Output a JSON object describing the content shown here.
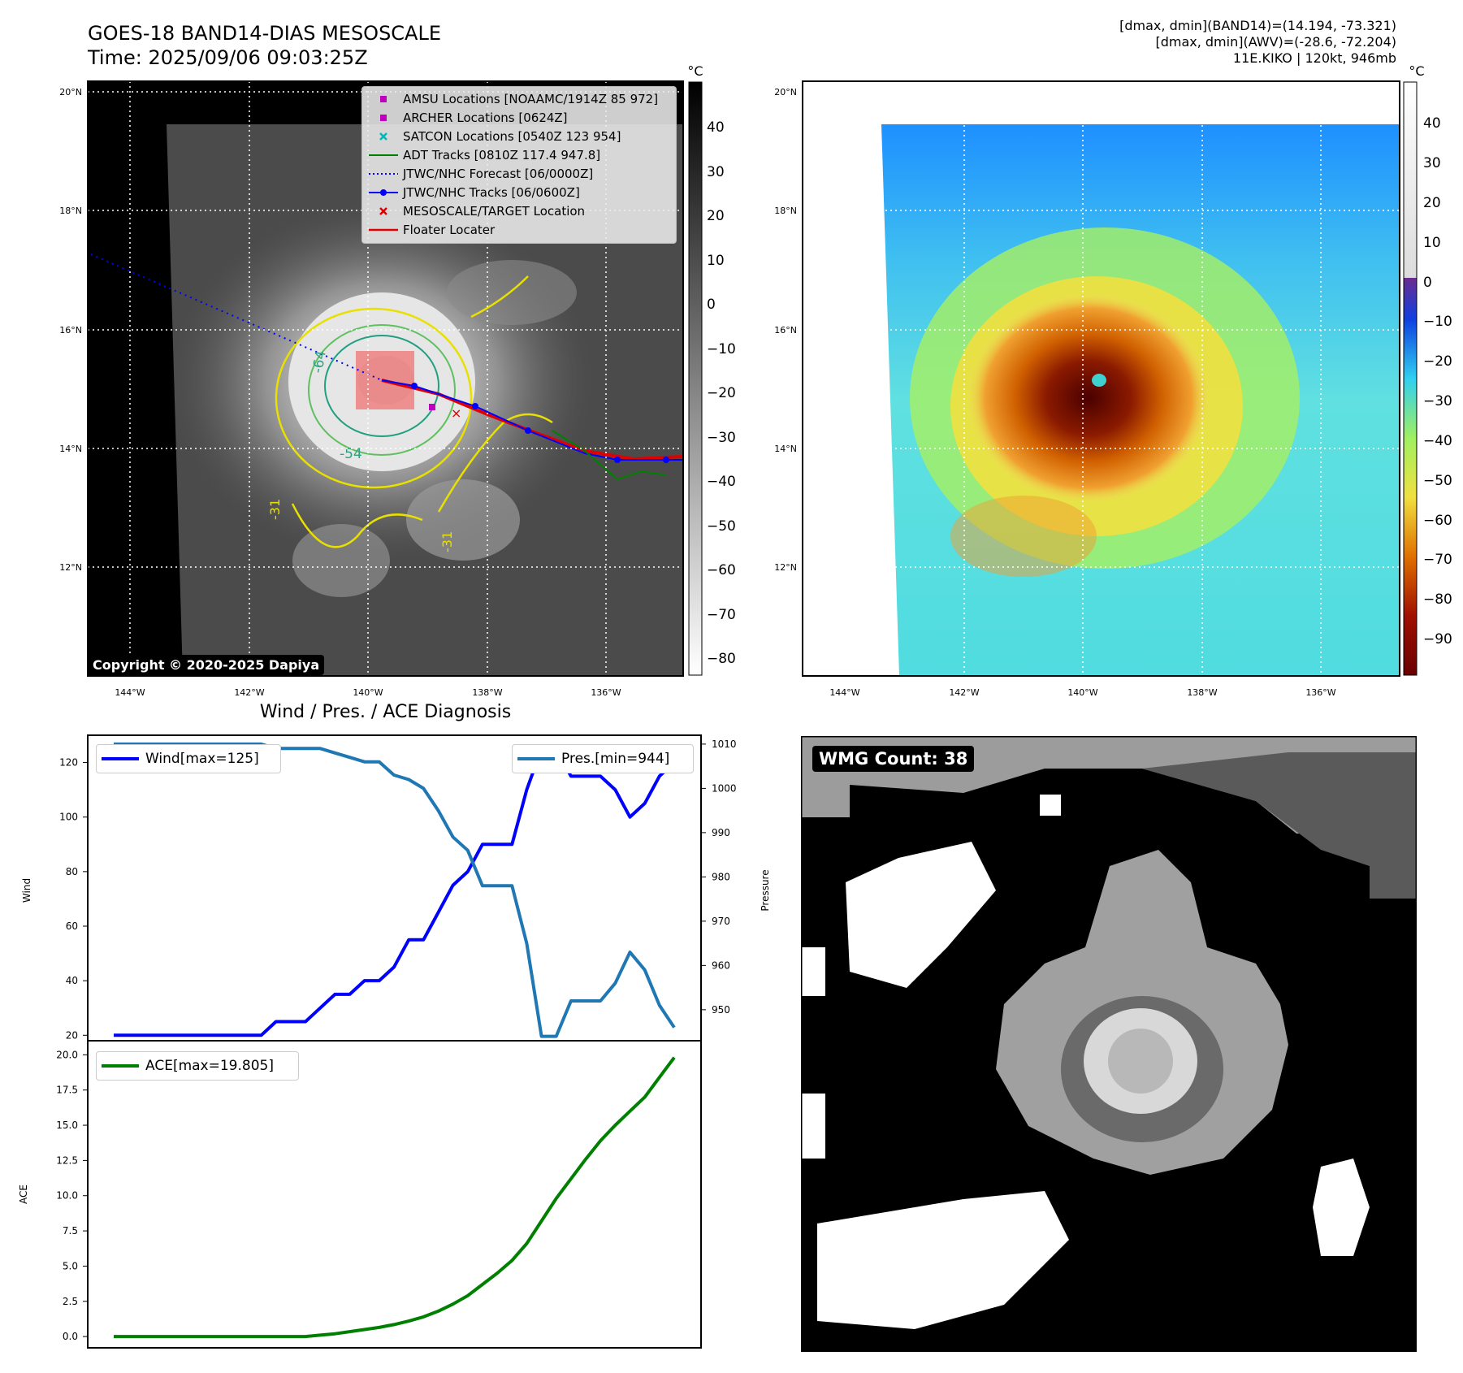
{
  "header": {
    "title": "GOES-18 BAND14-DIAS MESOSCALE",
    "time": "Time: 2025/09/06 09:03:25Z",
    "stats_band14": "[dmax, dmin](BAND14)=(14.194, -73.321)",
    "stats_awv": "[dmax, dmin](AWV)=(-28.6, -72.204)",
    "storm": "11E.KIKO | 120kt, 946mb"
  },
  "map": {
    "lat_labels": [
      "20°N",
      "18°N",
      "16°N",
      "14°N",
      "12°N"
    ],
    "lon_labels": [
      "144°W",
      "142°W",
      "140°W",
      "138°W",
      "136°W"
    ],
    "contour_labels": [
      "-64",
      "-54",
      "-31",
      "-31"
    ],
    "copyright": "Copyright © 2020-2025 Dapiya"
  },
  "legend": [
    {
      "label": "AMSU Locations [NOAAMC/1914Z 85 972]",
      "marker": "square",
      "color": "#c000c0"
    },
    {
      "label": "ARCHER Locations [0624Z]",
      "marker": "square",
      "color": "#c000c0"
    },
    {
      "label": "SATCON Locations [0540Z 123 954]",
      "marker": "x",
      "color": "#00b8b8"
    },
    {
      "label": "ADT Tracks [0810Z 117.4 947.8]",
      "marker": "line",
      "color": "#008000"
    },
    {
      "label": "JTWC/NHC Forecast [06/0000Z]",
      "marker": "dotted",
      "color": "#0000ff"
    },
    {
      "label": "JTWC/NHC Tracks [06/0600Z]",
      "marker": "line-dot",
      "color": "#0000ff"
    },
    {
      "label": "MESOSCALE/TARGET Location",
      "marker": "x",
      "color": "#e00000"
    },
    {
      "label": "Floater Locater",
      "marker": "line",
      "color": "#e00000"
    }
  ],
  "colorbar_left": {
    "unit": "°C",
    "ticks": [
      "40",
      "30",
      "20",
      "10",
      "0",
      "−10",
      "−20",
      "−30",
      "−40",
      "−50",
      "−60",
      "−70",
      "−80"
    ]
  },
  "colorbar_right": {
    "unit": "°C",
    "ticks": [
      "40",
      "30",
      "20",
      "10",
      "0",
      "−10",
      "−20",
      "−30",
      "−40",
      "−50",
      "−60",
      "−70",
      "−80",
      "−90"
    ]
  },
  "diagnosis_title": "Wind / Pres. / ACE Diagnosis",
  "wmg": {
    "label": "WMG Count: 38"
  },
  "chart_data": [
    {
      "type": "line",
      "title": "Wind / Pres. / ACE Diagnosis",
      "ylabel": "Wind",
      "ylabel_right": "Pressure",
      "ylim": [
        18,
        130
      ],
      "ylim_right": [
        943,
        1012
      ],
      "yticks": [
        "120",
        "100",
        "80",
        "60",
        "40",
        "20"
      ],
      "yticks_right": [
        "1010",
        "1000",
        "990",
        "980",
        "970",
        "960",
        "950"
      ],
      "legend_wind": "Wind[max=125]",
      "legend_pres": "Pres.[min=944]",
      "series": [
        {
          "name": "Wind",
          "color": "#0000ff",
          "values": [
            20,
            20,
            20,
            20,
            20,
            20,
            20,
            20,
            20,
            20,
            20,
            25,
            25,
            25,
            30,
            35,
            35,
            40,
            40,
            45,
            55,
            55,
            65,
            75,
            80,
            90,
            90,
            90,
            110,
            125,
            125,
            115,
            115,
            115,
            110,
            100,
            105,
            115,
            120
          ]
        },
        {
          "name": "Pres.",
          "color": "#1f77b4",
          "values": [
            1010,
            1010,
            1010,
            1010,
            1010,
            1010,
            1010,
            1010,
            1010,
            1010,
            1010,
            1009,
            1009,
            1009,
            1009,
            1008,
            1007,
            1006,
            1006,
            1003,
            1002,
            1000,
            995,
            989,
            986,
            978,
            978,
            978,
            965,
            944,
            944,
            952,
            952,
            952,
            956,
            963,
            959,
            951,
            946
          ]
        }
      ]
    },
    {
      "type": "line",
      "ylabel": "ACE",
      "ylim": [
        -0.8,
        21
      ],
      "yticks": [
        "20.0",
        "17.5",
        "15.0",
        "12.5",
        "10.0",
        "7.5",
        "5.0",
        "2.5",
        "0.0"
      ],
      "legend": "ACE[max=19.805]",
      "series": [
        {
          "name": "ACE",
          "color": "#008000",
          "values": [
            0,
            0,
            0,
            0,
            0,
            0,
            0,
            0,
            0,
            0,
            0,
            0,
            0,
            0,
            0.1,
            0.2,
            0.35,
            0.5,
            0.65,
            0.85,
            1.1,
            1.4,
            1.8,
            2.3,
            2.9,
            3.7,
            4.5,
            5.4,
            6.6,
            8.2,
            9.8,
            11.2,
            12.6,
            13.9,
            15.0,
            16.0,
            17.0,
            18.4,
            19.805
          ]
        }
      ]
    }
  ]
}
